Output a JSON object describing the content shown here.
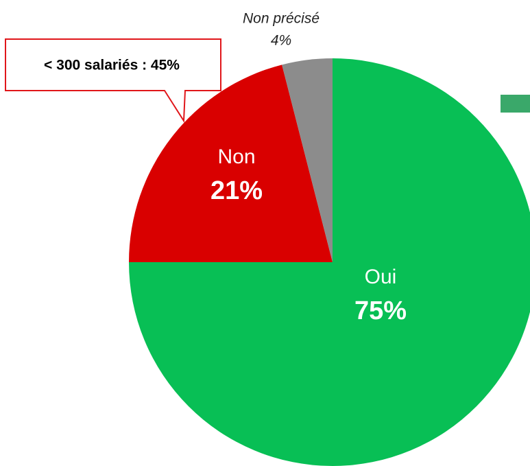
{
  "chart_data": {
    "type": "pie",
    "categories": [
      "Oui",
      "Non",
      "Non précisé"
    ],
    "values": [
      75,
      21,
      4
    ],
    "value_labels": [
      "75%",
      "21%",
      "4%"
    ],
    "colors": [
      "#08bf55",
      "#d90000",
      "#8c8c8c"
    ],
    "annotation": "< 300 salariés : 45%"
  }
}
